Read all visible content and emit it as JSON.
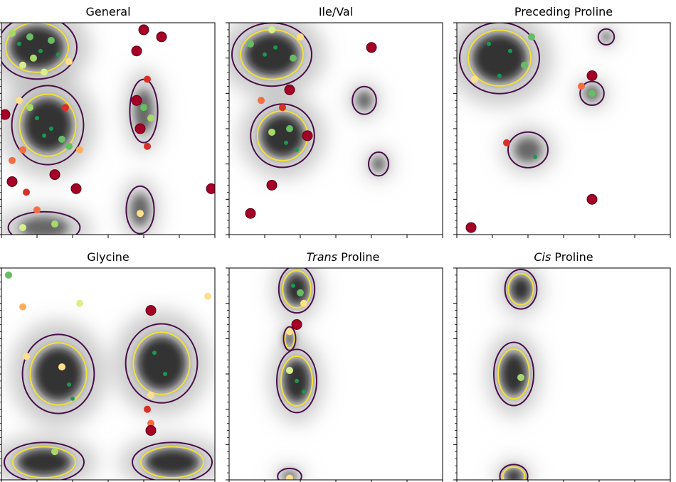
{
  "figure": {
    "panels": [
      {
        "id": "general",
        "title_prefix": "",
        "title_main": "General"
      },
      {
        "id": "ileval",
        "title_prefix": "",
        "title_main": "Ile/Val"
      },
      {
        "id": "prepro",
        "title_prefix": "",
        "title_main": "Preceding Proline"
      },
      {
        "id": "glycine",
        "title_prefix": "",
        "title_main": "Glycine"
      },
      {
        "id": "transpro",
        "title_prefix": "Trans",
        "title_main": " Proline"
      },
      {
        "id": "cispro",
        "title_prefix": "Cis",
        "title_main": " Proline"
      }
    ]
  },
  "chart_data": [
    {
      "type": "scatter",
      "title": "General",
      "xlim": [
        0,
        6
      ],
      "ylim": [
        0,
        6
      ],
      "density_regions": [
        {
          "x": 1.0,
          "y": 5.3,
          "rx": 1.0,
          "ry": 0.8,
          "level": "favored"
        },
        {
          "x": 1.3,
          "y": 3.1,
          "rx": 0.9,
          "ry": 1.0,
          "level": "favored"
        },
        {
          "x": 4.0,
          "y": 3.5,
          "rx": 0.35,
          "ry": 0.8,
          "level": "allowed"
        },
        {
          "x": 3.9,
          "y": 0.7,
          "rx": 0.35,
          "ry": 0.6,
          "level": "allowed"
        },
        {
          "x": 1.2,
          "y": 0.2,
          "rx": 0.9,
          "ry": 0.4,
          "level": "allowed"
        }
      ],
      "points": [
        {
          "x": 0.5,
          "y": 5.4,
          "c": "#1a9850"
        },
        {
          "x": 0.8,
          "y": 5.6,
          "c": "#66bd63"
        },
        {
          "x": 1.1,
          "y": 5.2,
          "c": "#1a9850"
        },
        {
          "x": 1.4,
          "y": 5.5,
          "c": "#66bd63"
        },
        {
          "x": 0.9,
          "y": 5.0,
          "c": "#a6d96a"
        },
        {
          "x": 1.6,
          "y": 5.1,
          "c": "#1a9850"
        },
        {
          "x": 0.6,
          "y": 4.8,
          "c": "#d9ef8b"
        },
        {
          "x": 1.9,
          "y": 4.9,
          "c": "#fee08b"
        },
        {
          "x": 0.3,
          "y": 5.7,
          "c": "#a6d96a"
        },
        {
          "x": 1.2,
          "y": 4.6,
          "c": "#d9ef8b"
        },
        {
          "x": 1.0,
          "y": 3.3,
          "c": "#1a9850"
        },
        {
          "x": 1.4,
          "y": 3.0,
          "c": "#1a9850"
        },
        {
          "x": 1.7,
          "y": 2.7,
          "c": "#66bd63"
        },
        {
          "x": 1.2,
          "y": 2.8,
          "c": "#1a9850"
        },
        {
          "x": 0.8,
          "y": 3.6,
          "c": "#a6d96a"
        },
        {
          "x": 1.9,
          "y": 2.5,
          "c": "#66bd63"
        },
        {
          "x": 0.5,
          "y": 3.8,
          "c": "#fee08b"
        },
        {
          "x": 2.2,
          "y": 2.4,
          "c": "#fdae61"
        },
        {
          "x": 0.6,
          "y": 2.4,
          "c": "#f46d43"
        },
        {
          "x": 0.3,
          "y": 2.1,
          "c": "#f46d43"
        },
        {
          "x": 0.1,
          "y": 3.4,
          "c": "#a50026"
        },
        {
          "x": 1.8,
          "y": 3.6,
          "c": "#d73027"
        },
        {
          "x": 1.5,
          "y": 1.7,
          "c": "#a50026"
        },
        {
          "x": 2.1,
          "y": 1.3,
          "c": "#a50026"
        },
        {
          "x": 0.7,
          "y": 1.2,
          "c": "#d73027"
        },
        {
          "x": 1.0,
          "y": 0.7,
          "c": "#f46d43"
        },
        {
          "x": 0.3,
          "y": 1.5,
          "c": "#a50026"
        },
        {
          "x": 4.0,
          "y": 5.8,
          "c": "#a50026"
        },
        {
          "x": 4.5,
          "y": 5.6,
          "c": "#a50026"
        },
        {
          "x": 3.8,
          "y": 5.2,
          "c": "#a50026"
        },
        {
          "x": 4.1,
          "y": 4.4,
          "c": "#d73027"
        },
        {
          "x": 3.8,
          "y": 3.8,
          "c": "#a50026"
        },
        {
          "x": 4.0,
          "y": 3.6,
          "c": "#66bd63"
        },
        {
          "x": 4.2,
          "y": 3.3,
          "c": "#a6d96a"
        },
        {
          "x": 3.9,
          "y": 3.0,
          "c": "#a50026"
        },
        {
          "x": 4.1,
          "y": 2.5,
          "c": "#d73027"
        },
        {
          "x": 3.9,
          "y": 0.6,
          "c": "#fee08b"
        },
        {
          "x": 0.6,
          "y": 0.2,
          "c": "#d9ef8b"
        },
        {
          "x": 1.5,
          "y": 0.3,
          "c": "#a6d96a"
        },
        {
          "x": 5.9,
          "y": 1.3,
          "c": "#a50026"
        }
      ]
    },
    {
      "type": "scatter",
      "title": "Ile/Val",
      "xlim": [
        0,
        6
      ],
      "ylim": [
        0,
        6
      ],
      "density_regions": [
        {
          "x": 1.2,
          "y": 5.1,
          "rx": 1.0,
          "ry": 0.8,
          "level": "favored"
        },
        {
          "x": 1.5,
          "y": 2.8,
          "rx": 0.8,
          "ry": 0.8,
          "level": "favored"
        },
        {
          "x": 3.8,
          "y": 3.8,
          "rx": 0.3,
          "ry": 0.35,
          "level": "allowed"
        },
        {
          "x": 4.2,
          "y": 2.0,
          "rx": 0.25,
          "ry": 0.3,
          "level": "allowed"
        }
      ],
      "points": [
        {
          "x": 0.6,
          "y": 5.4,
          "c": "#66bd63"
        },
        {
          "x": 1.0,
          "y": 5.1,
          "c": "#1a9850"
        },
        {
          "x": 1.3,
          "y": 5.3,
          "c": "#1a9850"
        },
        {
          "x": 1.8,
          "y": 5.0,
          "c": "#66bd63"
        },
        {
          "x": 2.0,
          "y": 5.6,
          "c": "#fee08b"
        },
        {
          "x": 1.2,
          "y": 5.8,
          "c": "#d9ef8b"
        },
        {
          "x": 1.6,
          "y": 2.6,
          "c": "#1a9850"
        },
        {
          "x": 1.9,
          "y": 2.4,
          "c": "#1a9850"
        },
        {
          "x": 1.2,
          "y": 2.9,
          "c": "#a6d96a"
        },
        {
          "x": 1.7,
          "y": 3.0,
          "c": "#66bd63"
        },
        {
          "x": 0.9,
          "y": 3.8,
          "c": "#f46d43"
        },
        {
          "x": 1.7,
          "y": 4.1,
          "c": "#a50026"
        },
        {
          "x": 1.5,
          "y": 3.6,
          "c": "#d73027"
        },
        {
          "x": 2.2,
          "y": 2.8,
          "c": "#a50026"
        },
        {
          "x": 4.0,
          "y": 5.3,
          "c": "#a50026"
        },
        {
          "x": 1.2,
          "y": 1.4,
          "c": "#a50026"
        },
        {
          "x": 0.6,
          "y": 0.6,
          "c": "#a50026"
        }
      ]
    },
    {
      "type": "scatter",
      "title": "Preceding Proline",
      "xlim": [
        0,
        6
      ],
      "ylim": [
        0,
        6
      ],
      "density_regions": [
        {
          "x": 1.2,
          "y": 5.0,
          "rx": 1.0,
          "ry": 0.9,
          "level": "favored"
        },
        {
          "x": 2.0,
          "y": 2.4,
          "rx": 0.5,
          "ry": 0.45,
          "level": "allowed"
        },
        {
          "x": 3.8,
          "y": 4.0,
          "rx": 0.3,
          "ry": 0.3,
          "level": "allowed"
        },
        {
          "x": 4.2,
          "y": 5.6,
          "rx": 0.2,
          "ry": 0.2,
          "level": "allowed"
        }
      ],
      "points": [
        {
          "x": 0.9,
          "y": 5.4,
          "c": "#1a9850"
        },
        {
          "x": 1.5,
          "y": 5.2,
          "c": "#1a9850"
        },
        {
          "x": 1.9,
          "y": 4.8,
          "c": "#66bd63"
        },
        {
          "x": 1.2,
          "y": 4.5,
          "c": "#1a9850"
        },
        {
          "x": 0.5,
          "y": 4.4,
          "c": "#fee08b"
        },
        {
          "x": 2.1,
          "y": 5.6,
          "c": "#66bd63"
        },
        {
          "x": 3.5,
          "y": 4.2,
          "c": "#f46d43"
        },
        {
          "x": 3.8,
          "y": 4.0,
          "c": "#66bd63"
        },
        {
          "x": 3.8,
          "y": 4.5,
          "c": "#a50026"
        },
        {
          "x": 2.2,
          "y": 2.2,
          "c": "#1a9850"
        },
        {
          "x": 1.4,
          "y": 2.6,
          "c": "#d73027"
        },
        {
          "x": 3.8,
          "y": 1.0,
          "c": "#a50026"
        },
        {
          "x": 0.4,
          "y": 0.2,
          "c": "#a50026"
        }
      ]
    },
    {
      "type": "scatter",
      "title": "Glycine",
      "xlim": [
        0,
        6
      ],
      "ylim": [
        0,
        6
      ],
      "density_regions": [
        {
          "x": 1.6,
          "y": 3.0,
          "rx": 0.9,
          "ry": 1.0,
          "level": "favored"
        },
        {
          "x": 4.5,
          "y": 3.3,
          "rx": 0.9,
          "ry": 1.0,
          "level": "favored"
        },
        {
          "x": 1.2,
          "y": 0.5,
          "rx": 1.0,
          "ry": 0.5,
          "level": "favored"
        },
        {
          "x": 4.8,
          "y": 0.5,
          "rx": 1.0,
          "ry": 0.5,
          "level": "favored"
        }
      ],
      "points": [
        {
          "x": 0.7,
          "y": 3.5,
          "c": "#fee08b"
        },
        {
          "x": 1.7,
          "y": 3.2,
          "c": "#fee08b"
        },
        {
          "x": 1.9,
          "y": 2.7,
          "c": "#1a9850"
        },
        {
          "x": 2.0,
          "y": 2.3,
          "c": "#1a9850"
        },
        {
          "x": 4.3,
          "y": 3.6,
          "c": "#1a9850"
        },
        {
          "x": 4.6,
          "y": 3.0,
          "c": "#1a9850"
        },
        {
          "x": 4.2,
          "y": 4.8,
          "c": "#a50026"
        },
        {
          "x": 4.2,
          "y": 2.4,
          "c": "#fee08b"
        },
        {
          "x": 4.1,
          "y": 2.0,
          "c": "#d73027"
        },
        {
          "x": 4.2,
          "y": 1.6,
          "c": "#f46d43"
        },
        {
          "x": 4.2,
          "y": 1.4,
          "c": "#a50026"
        },
        {
          "x": 0.6,
          "y": 4.9,
          "c": "#fdae61"
        },
        {
          "x": 2.2,
          "y": 5.0,
          "c": "#d9ef8b"
        },
        {
          "x": 5.8,
          "y": 5.2,
          "c": "#fee08b"
        },
        {
          "x": 1.5,
          "y": 0.8,
          "c": "#a6d96a"
        },
        {
          "x": 0.2,
          "y": 5.8,
          "c": "#66bd63"
        }
      ]
    },
    {
      "type": "scatter",
      "title": "Trans Proline",
      "xlim": [
        0,
        6
      ],
      "ylim": [
        0,
        6
      ],
      "density_regions": [
        {
          "x": 1.9,
          "y": 5.4,
          "rx": 0.45,
          "ry": 0.6,
          "level": "favored"
        },
        {
          "x": 1.7,
          "y": 4.0,
          "rx": 0.15,
          "ry": 0.3,
          "level": "favored"
        },
        {
          "x": 1.9,
          "y": 2.8,
          "rx": 0.5,
          "ry": 0.8,
          "level": "favored"
        },
        {
          "x": 1.7,
          "y": 0.1,
          "rx": 0.3,
          "ry": 0.2,
          "level": "allowed"
        }
      ],
      "points": [
        {
          "x": 1.8,
          "y": 5.5,
          "c": "#1a9850"
        },
        {
          "x": 2.0,
          "y": 5.3,
          "c": "#66bd63"
        },
        {
          "x": 2.1,
          "y": 5.0,
          "c": "#fee08b"
        },
        {
          "x": 1.7,
          "y": 4.2,
          "c": "#fee08b"
        },
        {
          "x": 1.9,
          "y": 4.4,
          "c": "#a50026"
        },
        {
          "x": 1.7,
          "y": 3.1,
          "c": "#d9ef8b"
        },
        {
          "x": 1.9,
          "y": 2.8,
          "c": "#1a9850"
        },
        {
          "x": 2.1,
          "y": 2.5,
          "c": "#1a9850"
        },
        {
          "x": 1.7,
          "y": 0.05,
          "c": "#fee08b"
        }
      ]
    },
    {
      "type": "scatter",
      "title": "Cis Proline",
      "xlim": [
        0,
        6
      ],
      "ylim": [
        0,
        6
      ],
      "density_regions": [
        {
          "x": 1.8,
          "y": 5.4,
          "rx": 0.4,
          "ry": 0.5,
          "level": "favored"
        },
        {
          "x": 1.6,
          "y": 3.0,
          "rx": 0.5,
          "ry": 0.8,
          "level": "favored"
        },
        {
          "x": 1.6,
          "y": 0.1,
          "rx": 0.35,
          "ry": 0.3,
          "level": "favored"
        }
      ],
      "points": [
        {
          "x": 1.8,
          "y": 2.9,
          "c": "#a6d96a"
        }
      ]
    }
  ]
}
